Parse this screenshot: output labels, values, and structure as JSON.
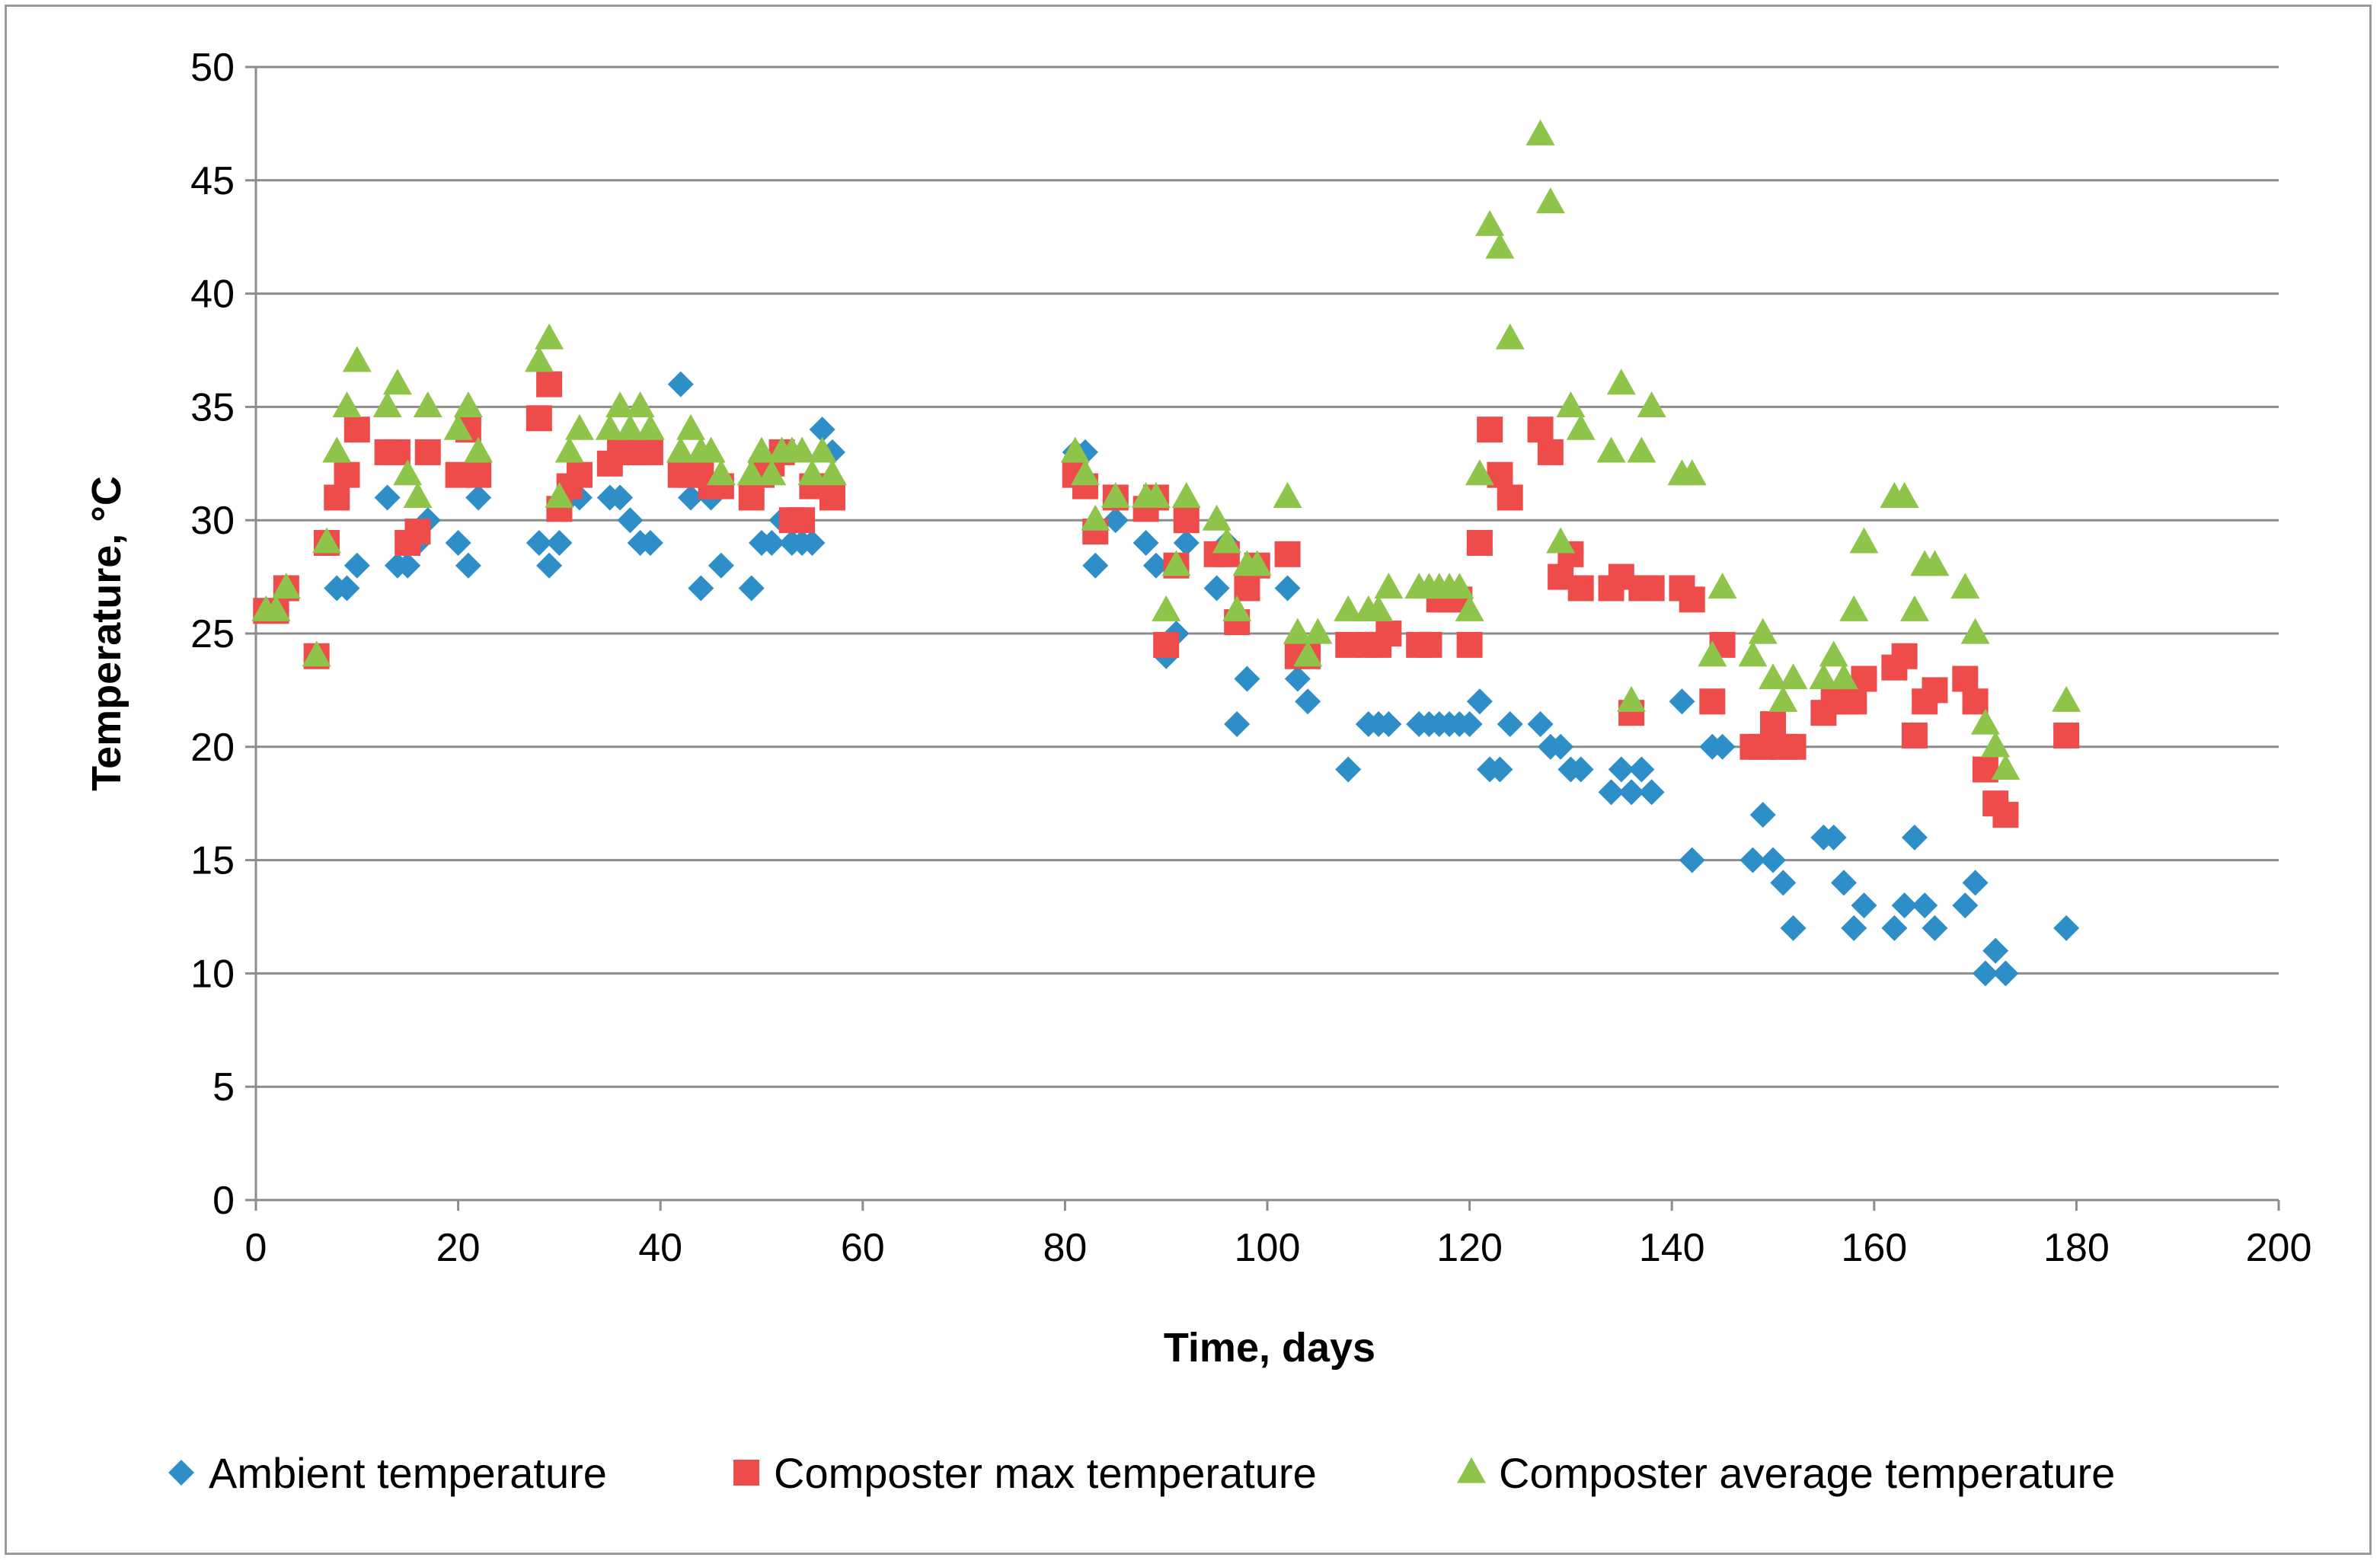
{
  "chart_data": {
    "type": "scatter",
    "xlabel": "Time, days",
    "ylabel": "Temperature, °C",
    "xlim": [
      0,
      200
    ],
    "ylim": [
      0,
      50
    ],
    "x_ticks": [
      0,
      20,
      40,
      60,
      80,
      100,
      120,
      140,
      160,
      180,
      200
    ],
    "y_ticks": [
      0,
      5,
      10,
      15,
      20,
      25,
      30,
      35,
      40,
      45,
      50
    ],
    "grid": "horizontal",
    "legend_position": "bottom",
    "series": [
      {
        "name": "Ambient temperature",
        "marker": "diamond",
        "color": "#2e8fc8",
        "points": [
          [
            1,
            26
          ],
          [
            2,
            26
          ],
          [
            3,
            27
          ],
          [
            6,
            24
          ],
          [
            7,
            29
          ],
          [
            8,
            27
          ],
          [
            9,
            27
          ],
          [
            10,
            28
          ],
          [
            13,
            31
          ],
          [
            14,
            28
          ],
          [
            15,
            28
          ],
          [
            16,
            29
          ],
          [
            17,
            30
          ],
          [
            20,
            29
          ],
          [
            21,
            28
          ],
          [
            22,
            31
          ],
          [
            28,
            29
          ],
          [
            29,
            28
          ],
          [
            30,
            29
          ],
          [
            31,
            31
          ],
          [
            32,
            31
          ],
          [
            35,
            31
          ],
          [
            36,
            31
          ],
          [
            37,
            30
          ],
          [
            38,
            29
          ],
          [
            39,
            29
          ],
          [
            42,
            36
          ],
          [
            43,
            31
          ],
          [
            44,
            27
          ],
          [
            45,
            31
          ],
          [
            46,
            28
          ],
          [
            49,
            27
          ],
          [
            50,
            29
          ],
          [
            51,
            29
          ],
          [
            52,
            30
          ],
          [
            53,
            29
          ],
          [
            54,
            29
          ],
          [
            55,
            29
          ],
          [
            56,
            34
          ],
          [
            57,
            33
          ],
          [
            81,
            33
          ],
          [
            82,
            33
          ],
          [
            83,
            28
          ],
          [
            85,
            30
          ],
          [
            88,
            29
          ],
          [
            89,
            28
          ],
          [
            90,
            24
          ],
          [
            91,
            25
          ],
          [
            92,
            29
          ],
          [
            95,
            27
          ],
          [
            96,
            29
          ],
          [
            97,
            21
          ],
          [
            98,
            23
          ],
          [
            99,
            28
          ],
          [
            102,
            27
          ],
          [
            103,
            23
          ],
          [
            104,
            22
          ],
          [
            108,
            19
          ],
          [
            110,
            21
          ],
          [
            111,
            21
          ],
          [
            112,
            21
          ],
          [
            115,
            21
          ],
          [
            116,
            21
          ],
          [
            117,
            21
          ],
          [
            118,
            21
          ],
          [
            119,
            21
          ],
          [
            120,
            21
          ],
          [
            121,
            22
          ],
          [
            122,
            19
          ],
          [
            123,
            19
          ],
          [
            124,
            21
          ],
          [
            127,
            21
          ],
          [
            128,
            20
          ],
          [
            129,
            20
          ],
          [
            130,
            19
          ],
          [
            131,
            19
          ],
          [
            134,
            18
          ],
          [
            135,
            19
          ],
          [
            136,
            18
          ],
          [
            137,
            19
          ],
          [
            138,
            18
          ],
          [
            141,
            22
          ],
          [
            142,
            15
          ],
          [
            144,
            20
          ],
          [
            145,
            20
          ],
          [
            148,
            15
          ],
          [
            149,
            17
          ],
          [
            150,
            15
          ],
          [
            151,
            14
          ],
          [
            152,
            12
          ],
          [
            155,
            16
          ],
          [
            156,
            16
          ],
          [
            157,
            14
          ],
          [
            158,
            12
          ],
          [
            159,
            13
          ],
          [
            162,
            12
          ],
          [
            163,
            13
          ],
          [
            164,
            16
          ],
          [
            165,
            13
          ],
          [
            166,
            12
          ],
          [
            169,
            13
          ],
          [
            170,
            14
          ],
          [
            171,
            10
          ],
          [
            172,
            11
          ],
          [
            173,
            10
          ],
          [
            179,
            12
          ]
        ]
      },
      {
        "name": "Composter max temperature",
        "marker": "square",
        "color": "#ee4b4b",
        "points": [
          [
            1,
            26
          ],
          [
            2,
            26
          ],
          [
            3,
            27
          ],
          [
            6,
            24
          ],
          [
            7,
            29
          ],
          [
            8,
            31
          ],
          [
            9,
            32
          ],
          [
            10,
            34
          ],
          [
            13,
            33
          ],
          [
            14,
            33
          ],
          [
            15,
            29
          ],
          [
            16,
            29.5
          ],
          [
            17,
            33
          ],
          [
            20,
            32
          ],
          [
            21,
            34
          ],
          [
            22,
            32
          ],
          [
            28,
            34.5
          ],
          [
            29,
            36
          ],
          [
            30,
            30.5
          ],
          [
            31,
            31.5
          ],
          [
            32,
            32
          ],
          [
            35,
            32.5
          ],
          [
            36,
            33
          ],
          [
            37,
            33
          ],
          [
            38,
            33
          ],
          [
            39,
            33
          ],
          [
            42,
            32
          ],
          [
            43,
            32
          ],
          [
            44,
            32
          ],
          [
            45,
            31.5
          ],
          [
            46,
            31.5
          ],
          [
            49,
            31
          ],
          [
            50,
            32
          ],
          [
            51,
            32.5
          ],
          [
            52,
            33
          ],
          [
            53,
            30
          ],
          [
            54,
            30
          ],
          [
            55,
            31.5
          ],
          [
            56,
            31.5
          ],
          [
            57,
            31
          ],
          [
            81,
            32
          ],
          [
            82,
            31.5
          ],
          [
            83,
            29.5
          ],
          [
            85,
            31
          ],
          [
            88,
            30.5
          ],
          [
            89,
            31
          ],
          [
            90,
            24.5
          ],
          [
            91,
            28
          ],
          [
            92,
            30
          ],
          [
            95,
            28.5
          ],
          [
            96,
            28.5
          ],
          [
            97,
            25.5
          ],
          [
            98,
            27
          ],
          [
            99,
            28
          ],
          [
            102,
            28.5
          ],
          [
            103,
            24
          ],
          [
            104,
            24
          ],
          [
            108,
            24.5
          ],
          [
            110,
            24.5
          ],
          [
            111,
            24.5
          ],
          [
            112,
            25
          ],
          [
            115,
            24.5
          ],
          [
            116,
            24.5
          ],
          [
            117,
            26.5
          ],
          [
            118,
            26.5
          ],
          [
            119,
            26.5
          ],
          [
            120,
            24.5
          ],
          [
            121,
            29
          ],
          [
            122,
            34
          ],
          [
            123,
            32
          ],
          [
            124,
            31
          ],
          [
            127,
            34
          ],
          [
            128,
            33
          ],
          [
            129,
            27.5
          ],
          [
            130,
            28.5
          ],
          [
            131,
            27
          ],
          [
            134,
            27
          ],
          [
            135,
            27.5
          ],
          [
            136,
            21.5
          ],
          [
            137,
            27
          ],
          [
            138,
            27
          ],
          [
            141,
            27
          ],
          [
            142,
            26.5
          ],
          [
            144,
            22
          ],
          [
            145,
            24.5
          ],
          [
            148,
            20
          ],
          [
            149,
            20
          ],
          [
            150,
            21
          ],
          [
            151,
            20
          ],
          [
            152,
            20
          ],
          [
            155,
            21.5
          ],
          [
            156,
            22
          ],
          [
            157,
            22
          ],
          [
            158,
            22
          ],
          [
            159,
            23
          ],
          [
            162,
            23.5
          ],
          [
            163,
            24
          ],
          [
            164,
            20.5
          ],
          [
            165,
            22
          ],
          [
            166,
            22.5
          ],
          [
            169,
            23
          ],
          [
            170,
            22
          ],
          [
            171,
            19
          ],
          [
            172,
            17.5
          ],
          [
            173,
            17
          ],
          [
            179,
            20.5
          ]
        ]
      },
      {
        "name": "Composter average temperature",
        "marker": "triangle",
        "color": "#8fc44a",
        "points": [
          [
            1,
            26
          ],
          [
            2,
            26
          ],
          [
            3,
            27
          ],
          [
            6,
            24
          ],
          [
            7,
            29
          ],
          [
            8,
            33
          ],
          [
            9,
            35
          ],
          [
            10,
            37
          ],
          [
            13,
            35
          ],
          [
            14,
            36
          ],
          [
            15,
            32
          ],
          [
            16,
            31
          ],
          [
            17,
            35
          ],
          [
            20,
            34
          ],
          [
            21,
            35
          ],
          [
            22,
            33
          ],
          [
            28,
            37
          ],
          [
            29,
            38
          ],
          [
            30,
            31
          ],
          [
            31,
            33
          ],
          [
            32,
            34
          ],
          [
            35,
            34
          ],
          [
            36,
            35
          ],
          [
            37,
            34
          ],
          [
            38,
            35
          ],
          [
            39,
            34
          ],
          [
            42,
            33
          ],
          [
            43,
            34
          ],
          [
            44,
            33
          ],
          [
            45,
            33
          ],
          [
            46,
            32
          ],
          [
            49,
            32
          ],
          [
            50,
            33
          ],
          [
            51,
            32
          ],
          [
            52,
            33
          ],
          [
            53,
            33
          ],
          [
            54,
            33
          ],
          [
            55,
            32
          ],
          [
            56,
            33
          ],
          [
            57,
            32
          ],
          [
            81,
            33
          ],
          [
            82,
            32
          ],
          [
            83,
            30
          ],
          [
            85,
            31
          ],
          [
            88,
            31
          ],
          [
            89,
            31
          ],
          [
            90,
            26
          ],
          [
            91,
            28
          ],
          [
            92,
            31
          ],
          [
            95,
            30
          ],
          [
            96,
            29
          ],
          [
            97,
            26
          ],
          [
            98,
            28
          ],
          [
            99,
            28
          ],
          [
            102,
            31
          ],
          [
            103,
            25
          ],
          [
            104,
            24
          ],
          [
            105,
            25
          ],
          [
            108,
            26
          ],
          [
            110,
            26
          ],
          [
            111,
            26
          ],
          [
            112,
            27
          ],
          [
            115,
            27
          ],
          [
            116,
            27
          ],
          [
            117,
            27
          ],
          [
            118,
            27
          ],
          [
            119,
            27
          ],
          [
            120,
            26
          ],
          [
            121,
            32
          ],
          [
            122,
            43
          ],
          [
            123,
            42
          ],
          [
            124,
            38
          ],
          [
            127,
            47
          ],
          [
            128,
            44
          ],
          [
            129,
            29
          ],
          [
            130,
            35
          ],
          [
            131,
            34
          ],
          [
            134,
            33
          ],
          [
            135,
            36
          ],
          [
            136,
            22
          ],
          [
            137,
            33
          ],
          [
            138,
            35
          ],
          [
            141,
            32
          ],
          [
            142,
            32
          ],
          [
            144,
            24
          ],
          [
            145,
            27
          ],
          [
            148,
            24
          ],
          [
            149,
            25
          ],
          [
            150,
            23
          ],
          [
            151,
            22
          ],
          [
            152,
            23
          ],
          [
            155,
            23
          ],
          [
            156,
            24
          ],
          [
            157,
            23
          ],
          [
            158,
            26
          ],
          [
            159,
            29
          ],
          [
            162,
            31
          ],
          [
            163,
            31
          ],
          [
            164,
            26
          ],
          [
            165,
            28
          ],
          [
            166,
            28
          ],
          [
            169,
            27
          ],
          [
            170,
            25
          ],
          [
            171,
            21
          ],
          [
            172,
            20
          ],
          [
            173,
            19
          ],
          [
            179,
            22
          ]
        ]
      }
    ]
  }
}
